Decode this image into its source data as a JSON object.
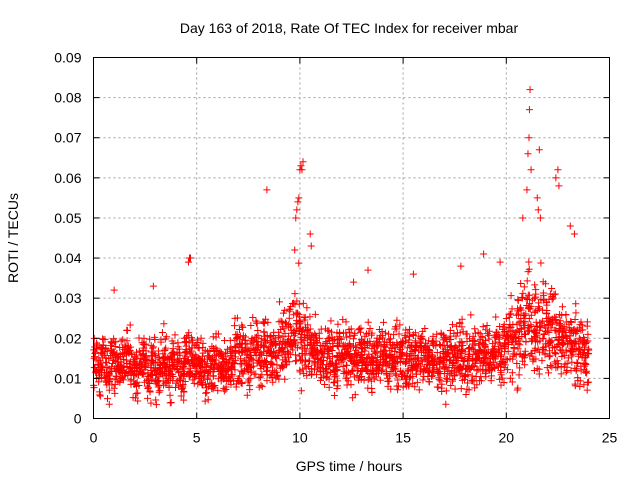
{
  "chart_data": {
    "type": "scatter",
    "title": "Day 163 of 2018, Rate Of TEC Index for receiver mbar",
    "xlabel": "GPS time / hours",
    "ylabel": "ROTI / TECUs",
    "xlim": [
      0,
      25
    ],
    "ylim": [
      0,
      0.09
    ],
    "xticks": [
      0,
      5,
      10,
      15,
      20,
      25
    ],
    "xtick_labels": [
      "0",
      "5",
      "10",
      "15",
      "20",
      "25"
    ],
    "yticks": [
      0,
      0.01,
      0.02,
      0.03,
      0.04,
      0.05,
      0.06,
      0.07,
      0.08,
      0.09
    ],
    "ytick_labels": [
      "0",
      "0.01",
      "0.02",
      "0.03",
      "0.04",
      "0.05",
      "0.06",
      "0.07",
      "0.08",
      "0.09"
    ],
    "grid": true,
    "marker": "plus",
    "marker_color": "#ff0000",
    "series": [
      {
        "x": [
          0.1,
          0.3,
          0.5,
          0.7,
          0.9,
          1.1,
          1.3,
          1.5,
          1.7,
          1.9,
          2.1,
          2.3,
          2.5,
          2.7,
          2.9,
          3.1,
          3.3,
          3.5,
          3.7,
          3.9,
          4.1,
          4.3,
          4.5,
          4.7,
          4.9,
          5.1,
          5.3,
          5.5,
          5.7,
          5.9,
          6.1,
          6.3,
          6.5,
          6.7,
          6.9,
          7.1,
          7.3,
          7.5,
          7.7,
          7.9,
          8.1,
          8.3,
          8.5,
          8.7,
          8.9,
          9.1,
          9.3,
          9.5,
          9.7,
          9.9,
          10.1,
          10.3,
          10.5,
          10.7,
          10.9,
          11.1,
          11.3,
          11.5,
          11.7,
          11.9,
          12.1,
          12.3,
          12.5,
          12.7,
          12.9,
          13.1,
          13.3,
          13.5,
          13.7,
          13.9,
          14.1,
          14.3,
          14.5,
          14.7,
          14.9,
          15.1,
          15.3,
          15.5,
          15.7,
          15.9,
          16.1,
          16.3,
          16.5,
          16.7,
          16.9,
          17.1,
          17.3,
          17.5,
          17.7,
          17.9,
          18.1,
          18.3,
          18.5,
          18.7,
          18.9,
          19.1,
          19.3,
          19.5,
          19.7,
          19.9,
          20.1,
          20.3,
          20.5,
          20.7,
          20.9,
          21.1,
          21.3,
          21.5,
          21.7,
          21.9,
          22.1,
          22.3,
          22.5,
          22.7,
          22.9,
          23.1,
          23.3,
          23.5,
          23.7,
          23.9
        ],
        "y": [
          0.014,
          0.012,
          0.016,
          0.011,
          0.015,
          0.013,
          0.012,
          0.014,
          0.016,
          0.012,
          0.011,
          0.013,
          0.015,
          0.012,
          0.014,
          0.011,
          0.013,
          0.015,
          0.012,
          0.014,
          0.013,
          0.011,
          0.015,
          0.016,
          0.012,
          0.014,
          0.013,
          0.011,
          0.012,
          0.015,
          0.014,
          0.013,
          0.012,
          0.014,
          0.016,
          0.015,
          0.017,
          0.014,
          0.016,
          0.018,
          0.015,
          0.017,
          0.016,
          0.018,
          0.017,
          0.019,
          0.02,
          0.021,
          0.022,
          0.024,
          0.02,
          0.018,
          0.017,
          0.016,
          0.015,
          0.014,
          0.015,
          0.016,
          0.014,
          0.015,
          0.016,
          0.015,
          0.014,
          0.016,
          0.017,
          0.015,
          0.016,
          0.014,
          0.015,
          0.016,
          0.015,
          0.014,
          0.015,
          0.016,
          0.015,
          0.014,
          0.016,
          0.015,
          0.014,
          0.016,
          0.015,
          0.014,
          0.016,
          0.015,
          0.016,
          0.014,
          0.015,
          0.016,
          0.015,
          0.016,
          0.014,
          0.016,
          0.015,
          0.016,
          0.017,
          0.016,
          0.015,
          0.017,
          0.016,
          0.018,
          0.019,
          0.021,
          0.02,
          0.022,
          0.024,
          0.025,
          0.024,
          0.022,
          0.023,
          0.024,
          0.022,
          0.021,
          0.02,
          0.019,
          0.018,
          0.019,
          0.018,
          0.017,
          0.018,
          0.017
        ],
        "spread": [
          0.006,
          0.006,
          0.006,
          0.006,
          0.006,
          0.006,
          0.006,
          0.006,
          0.006,
          0.006,
          0.006,
          0.006,
          0.006,
          0.006,
          0.006,
          0.006,
          0.006,
          0.006,
          0.006,
          0.006,
          0.006,
          0.006,
          0.006,
          0.006,
          0.006,
          0.006,
          0.006,
          0.006,
          0.006,
          0.006,
          0.006,
          0.006,
          0.006,
          0.006,
          0.007,
          0.007,
          0.007,
          0.007,
          0.007,
          0.007,
          0.007,
          0.007,
          0.007,
          0.007,
          0.007,
          0.007,
          0.008,
          0.009,
          0.01,
          0.012,
          0.01,
          0.009,
          0.008,
          0.007,
          0.007,
          0.006,
          0.007,
          0.007,
          0.007,
          0.007,
          0.007,
          0.007,
          0.007,
          0.007,
          0.007,
          0.007,
          0.007,
          0.007,
          0.007,
          0.007,
          0.007,
          0.007,
          0.007,
          0.007,
          0.007,
          0.007,
          0.007,
          0.007,
          0.007,
          0.007,
          0.007,
          0.007,
          0.007,
          0.007,
          0.007,
          0.007,
          0.007,
          0.007,
          0.007,
          0.007,
          0.007,
          0.007,
          0.007,
          0.007,
          0.007,
          0.007,
          0.007,
          0.007,
          0.007,
          0.008,
          0.009,
          0.01,
          0.01,
          0.011,
          0.012,
          0.012,
          0.012,
          0.011,
          0.011,
          0.011,
          0.01,
          0.01,
          0.009,
          0.009,
          0.008,
          0.008,
          0.008,
          0.008,
          0.008,
          0.008
        ]
      }
    ],
    "outliers": {
      "x": [
        1.0,
        2.9,
        4.6,
        4.65,
        4.7,
        8.4,
        9.75,
        9.8,
        9.85,
        9.9,
        9.95,
        10.0,
        10.05,
        10.1,
        10.15,
        10.5,
        10.55,
        12.6,
        13.3,
        15.5,
        17.8,
        18.9,
        19.7,
        20.8,
        21.0,
        21.05,
        21.1,
        21.12,
        21.15,
        21.2,
        21.5,
        21.55,
        21.6,
        21.65,
        22.4,
        22.5,
        22.55,
        23.1,
        23.3
      ],
      "y": [
        0.032,
        0.033,
        0.039,
        0.04,
        0.04,
        0.057,
        0.042,
        0.05,
        0.052,
        0.054,
        0.055,
        0.062,
        0.063,
        0.062,
        0.064,
        0.046,
        0.043,
        0.034,
        0.037,
        0.036,
        0.038,
        0.041,
        0.039,
        0.05,
        0.057,
        0.066,
        0.07,
        0.077,
        0.082,
        0.062,
        0.055,
        0.052,
        0.067,
        0.05,
        0.06,
        0.062,
        0.058,
        0.048,
        0.046
      ]
    }
  }
}
